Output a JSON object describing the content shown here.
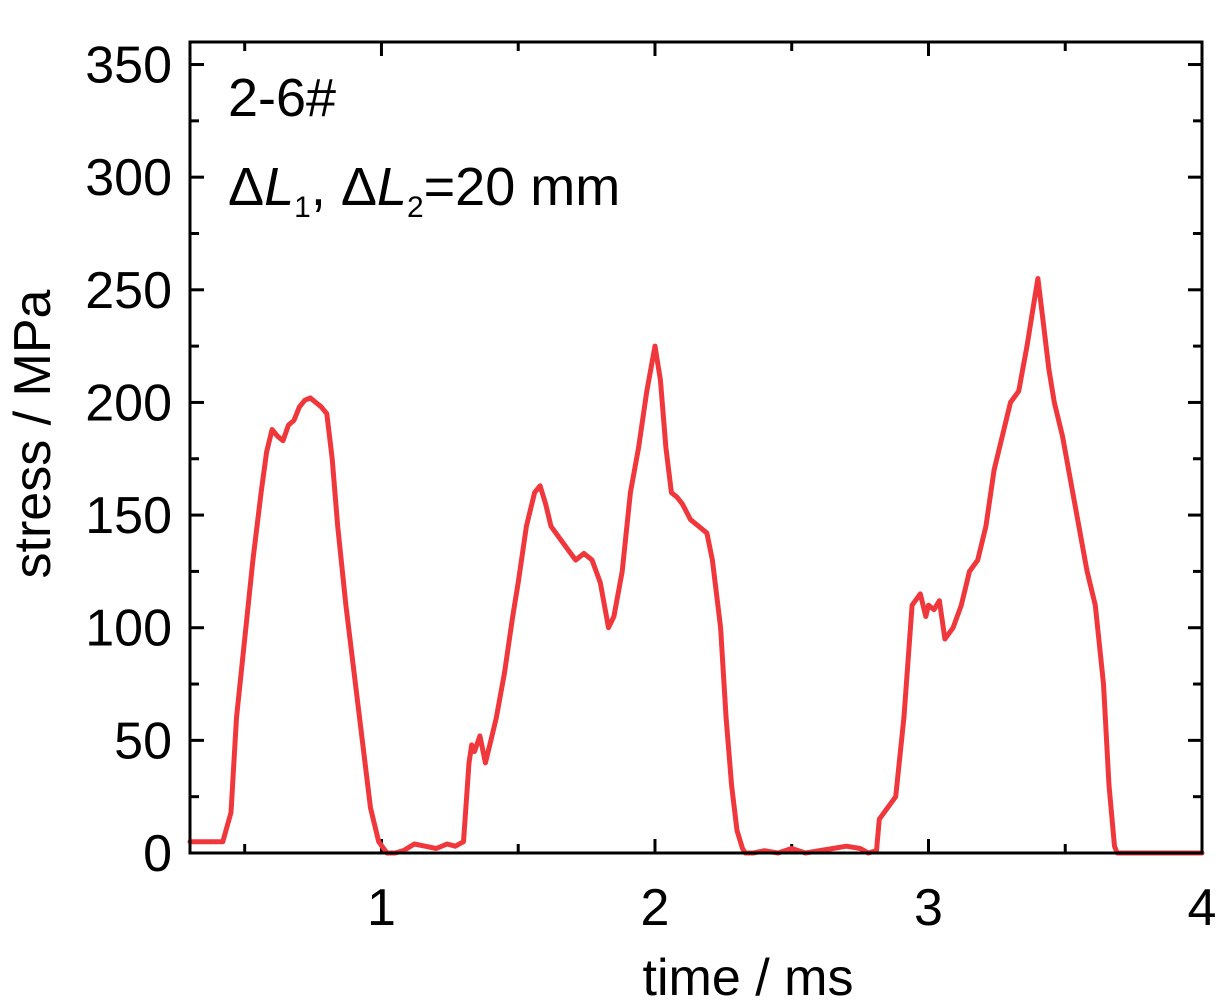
{
  "chart_data": {
    "type": "line",
    "xlabel": "time / ms",
    "ylabel": "stress / MPa",
    "xlim": [
      0.3,
      4.0
    ],
    "ylim": [
      0,
      360
    ],
    "x_ticks": [
      1,
      2,
      3,
      4
    ],
    "y_ticks": [
      0,
      50,
      100,
      150,
      200,
      250,
      300,
      350
    ],
    "grid": false,
    "annotations": {
      "specimen": "2-6#",
      "delta_prefix": "Δ",
      "var_L": "L",
      "sub_1": "1",
      "sep": ", Δ",
      "sub_2": "2",
      "value": "=20 mm"
    },
    "series": [
      {
        "color": "#f0383c",
        "x": [
          0.3,
          0.42,
          0.45,
          0.47,
          0.5,
          0.53,
          0.56,
          0.58,
          0.6,
          0.62,
          0.64,
          0.66,
          0.68,
          0.7,
          0.72,
          0.74,
          0.76,
          0.78,
          0.8,
          0.82,
          0.84,
          0.87,
          0.9,
          0.93,
          0.96,
          0.99,
          1.02,
          1.05,
          1.08,
          1.12,
          1.16,
          1.2,
          1.24,
          1.27,
          1.3,
          1.32,
          1.33,
          1.34,
          1.36,
          1.38,
          1.4,
          1.42,
          1.45,
          1.48,
          1.5,
          1.53,
          1.56,
          1.58,
          1.6,
          1.62,
          1.65,
          1.68,
          1.71,
          1.74,
          1.77,
          1.8,
          1.83,
          1.85,
          1.88,
          1.91,
          1.94,
          1.97,
          2.0,
          2.02,
          2.04,
          2.06,
          2.08,
          2.1,
          2.13,
          2.16,
          2.19,
          2.21,
          2.24,
          2.26,
          2.28,
          2.3,
          2.32,
          2.33,
          2.36,
          2.4,
          2.45,
          2.5,
          2.55,
          2.6,
          2.65,
          2.7,
          2.75,
          2.78,
          2.81,
          2.82,
          2.85,
          2.88,
          2.91,
          2.94,
          2.97,
          2.99,
          3.0,
          3.02,
          3.04,
          3.06,
          3.09,
          3.12,
          3.15,
          3.18,
          3.21,
          3.24,
          3.27,
          3.3,
          3.33,
          3.36,
          3.38,
          3.4,
          3.42,
          3.44,
          3.46,
          3.49,
          3.52,
          3.55,
          3.58,
          3.61,
          3.64,
          3.66,
          3.68,
          3.69,
          3.7,
          3.8,
          3.9,
          4.0
        ],
        "y": [
          5,
          5,
          18,
          60,
          95,
          130,
          160,
          178,
          188,
          185,
          183,
          190,
          192,
          198,
          201,
          202,
          200,
          198,
          195,
          175,
          145,
          110,
          80,
          50,
          20,
          5,
          0,
          0,
          1,
          4,
          3,
          2,
          4,
          3,
          5,
          40,
          48,
          45,
          52,
          40,
          50,
          60,
          80,
          105,
          120,
          145,
          160,
          163,
          155,
          145,
          140,
          135,
          130,
          133,
          130,
          120,
          100,
          105,
          125,
          160,
          180,
          205,
          225,
          210,
          180,
          160,
          158,
          155,
          148,
          145,
          142,
          130,
          100,
          60,
          30,
          10,
          2,
          0,
          0,
          1,
          0,
          2,
          0,
          1,
          2,
          3,
          2,
          0,
          1,
          15,
          20,
          25,
          60,
          110,
          115,
          105,
          110,
          108,
          112,
          95,
          100,
          110,
          125,
          130,
          145,
          170,
          185,
          200,
          205,
          225,
          240,
          255,
          235,
          215,
          200,
          185,
          165,
          145,
          125,
          110,
          75,
          30,
          3,
          0,
          0,
          0,
          0,
          0
        ]
      }
    ]
  }
}
